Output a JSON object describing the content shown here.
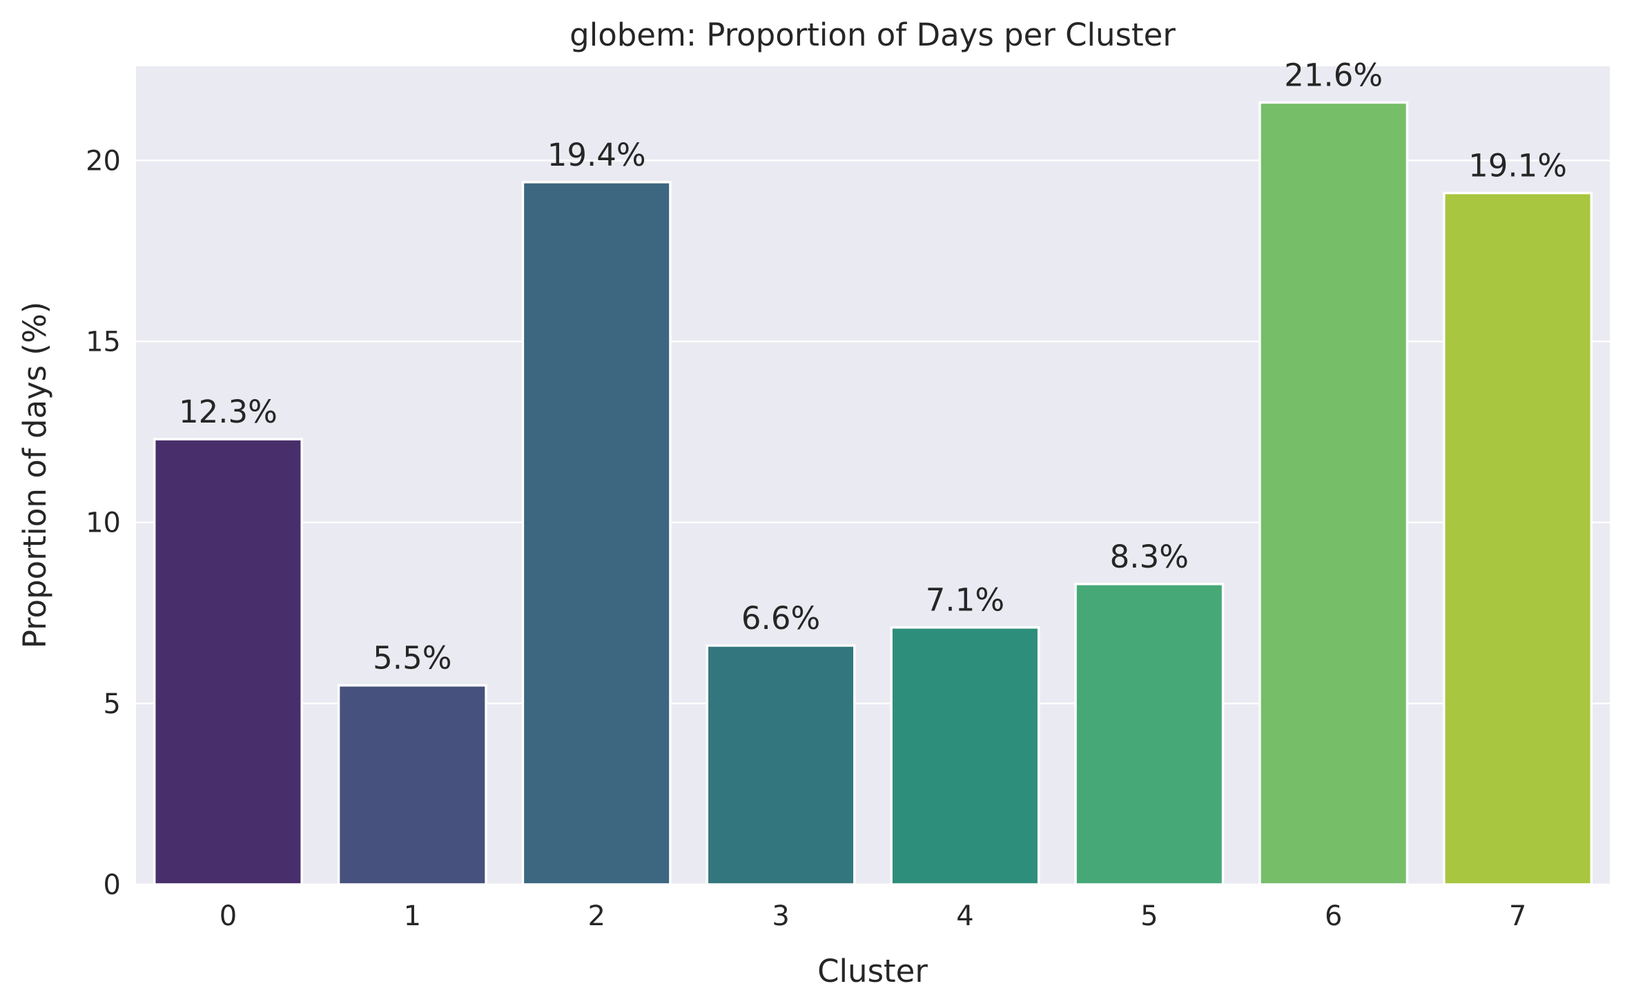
{
  "chart_data": {
    "type": "bar",
    "title": "globem: Proportion of Days per Cluster",
    "xlabel": "Cluster",
    "ylabel": "Proportion of days (%)",
    "categories": [
      "0",
      "1",
      "2",
      "3",
      "4",
      "5",
      "6",
      "7"
    ],
    "values": [
      12.3,
      5.5,
      19.4,
      6.6,
      7.1,
      8.3,
      21.6,
      19.1
    ],
    "data_labels": [
      "12.3%",
      "5.5%",
      "19.4%",
      "6.6%",
      "7.1%",
      "8.3%",
      "21.6%",
      "19.1%"
    ],
    "ylim": [
      0,
      22.6
    ],
    "yticks": [
      0,
      5,
      10,
      15,
      20
    ],
    "grid": true,
    "legend": "none",
    "colors": [
      "#482f6b",
      "#46527d",
      "#3d6680",
      "#33767d",
      "#2e8e7c",
      "#46a877",
      "#77be69",
      "#a9c640"
    ],
    "background": "#eaeaf2"
  }
}
